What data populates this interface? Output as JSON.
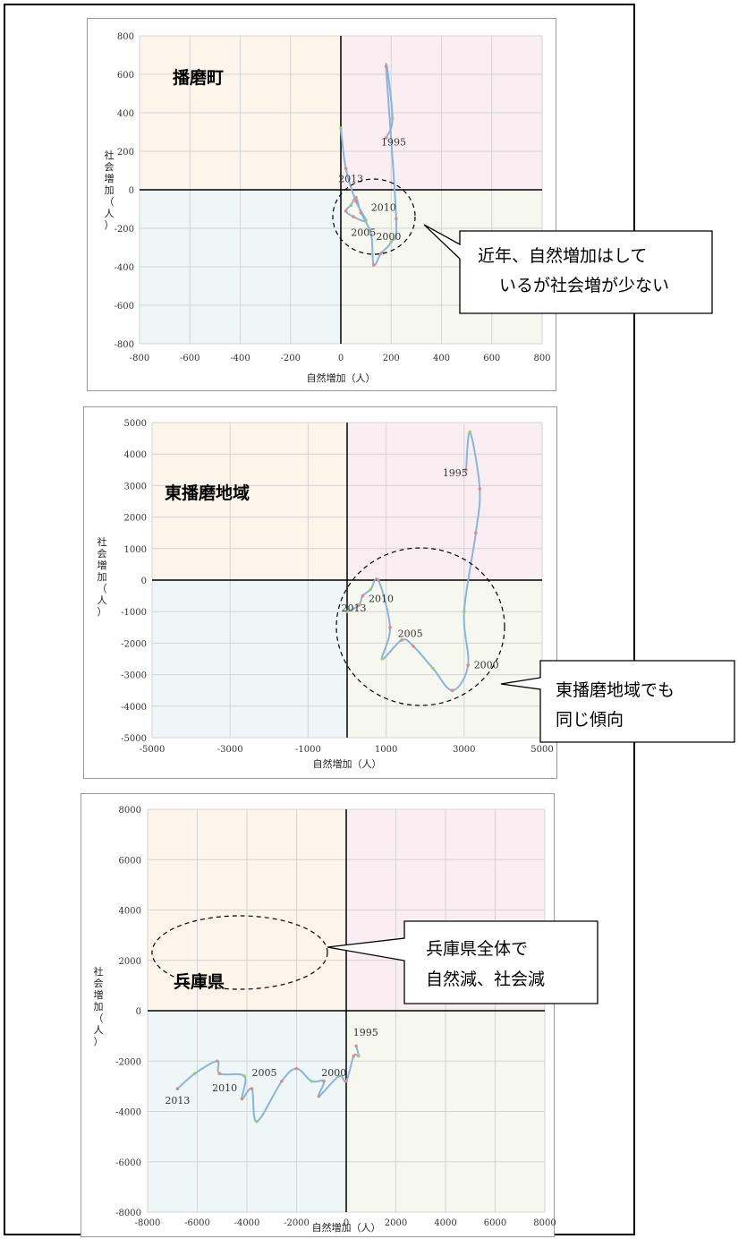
{
  "chart_data": [
    {
      "type": "line",
      "title": "播磨町",
      "xlabel": "自然増加（人）",
      "ylabel": "社会増加（人）",
      "xlim": [
        -800,
        800
      ],
      "ylim": [
        -800,
        800
      ],
      "xticks": [
        "-800",
        "-600",
        "-400",
        "-200",
        "0",
        "200",
        "400",
        "600",
        "800"
      ],
      "yticks": [
        "800",
        "600",
        "400",
        "200",
        "0",
        "-200",
        "-400",
        "-600",
        "-800"
      ],
      "quadrant_colors": {
        "top_left": "#fdf5ea",
        "top_right": "#fbeef2",
        "bottom_left": "#eef6f7",
        "bottom_right": "#f6f7ee"
      },
      "series": [
        {
          "values": [
            {
              "x": 180,
              "y": 270
            },
            {
              "x": 205,
              "y": 370
            },
            {
              "x": 180,
              "y": 640
            },
            {
              "x": 220,
              "y": -150
            },
            {
              "x": 200,
              "y": -270
            },
            {
              "x": 160,
              "y": -330
            },
            {
              "x": 130,
              "y": -390
            },
            {
              "x": 120,
              "y": -230
            },
            {
              "x": 80,
              "y": -120
            },
            {
              "x": 60,
              "y": -40
            },
            {
              "x": 40,
              "y": -80
            },
            {
              "x": 20,
              "y": -110
            },
            {
              "x": 50,
              "y": -140
            },
            {
              "x": 100,
              "y": -160
            },
            {
              "x": 60,
              "y": -60
            },
            {
              "x": 20,
              "y": 110
            },
            {
              "x": 0,
              "y": 320
            }
          ],
          "color": "#8ab4dc"
        }
      ],
      "annotations": [
        {
          "text": "1995",
          "x": 160,
          "y": 230
        },
        {
          "text": "2013",
          "x": -10,
          "y": 40
        },
        {
          "text": "2010",
          "x": 120,
          "y": -110
        },
        {
          "text": "2005",
          "x": 40,
          "y": -240
        },
        {
          "text": "2000",
          "x": 140,
          "y": -260
        }
      ],
      "callout": "近年、自然増加はして\nいるが社会増が少ない"
    },
    {
      "type": "line",
      "title": "東播磨地域",
      "xlabel": "自然増加（人）",
      "ylabel": "社会増加（人）",
      "xlim": [
        -5000,
        5000
      ],
      "ylim": [
        -5000,
        5000
      ],
      "xticks": [
        "-5000",
        "-3000",
        "-1000",
        "1000",
        "3000",
        "5000"
      ],
      "yticks": [
        "5000",
        "4000",
        "3000",
        "2000",
        "1000",
        "0",
        "-1000",
        "-2000",
        "-3000",
        "-4000",
        "-5000"
      ],
      "quadrant_colors": {
        "top_left": "#fdf5ea",
        "top_right": "#fbeef2",
        "bottom_left": "#eef6f7",
        "bottom_right": "#f6f7ee"
      },
      "series": [
        {
          "values": [
            {
              "x": 3050,
              "y": 3500
            },
            {
              "x": 3150,
              "y": 4700
            },
            {
              "x": 3400,
              "y": 2900
            },
            {
              "x": 3300,
              "y": 1500
            },
            {
              "x": 3000,
              "y": -1000
            },
            {
              "x": 3100,
              "y": -2700
            },
            {
              "x": 2700,
              "y": -3500
            },
            {
              "x": 2200,
              "y": -2800
            },
            {
              "x": 1700,
              "y": -2100
            },
            {
              "x": 1400,
              "y": -1900
            },
            {
              "x": 900,
              "y": -2500
            },
            {
              "x": 1100,
              "y": -1500
            },
            {
              "x": 800,
              "y": 0
            },
            {
              "x": 600,
              "y": -300
            },
            {
              "x": 400,
              "y": -500
            },
            {
              "x": 300,
              "y": -800
            },
            {
              "x": 0,
              "y": -1000
            }
          ],
          "color": "#8ab4dc"
        }
      ],
      "annotations": [
        {
          "text": "1995",
          "x": 2450,
          "y": 3300
        },
        {
          "text": "2010",
          "x": 550,
          "y": -700
        },
        {
          "text": "2013",
          "x": -150,
          "y": -1000
        },
        {
          "text": "2005",
          "x": 1300,
          "y": -1800
        },
        {
          "text": "2000",
          "x": 3250,
          "y": -2800
        }
      ],
      "callout": "東播磨地域でも\n同じ傾向"
    },
    {
      "type": "line",
      "title": "兵庫県",
      "xlabel": "自然増加（人）",
      "ylabel": "社会増加（人）",
      "xlim": [
        -8000,
        8000
      ],
      "ylim": [
        -8000,
        8000
      ],
      "xticks": [
        "-8000",
        "-6000",
        "-4000",
        "-2000",
        "0",
        "2000",
        "4000",
        "6000",
        "8000"
      ],
      "yticks": [
        "8000",
        "6000",
        "4000",
        "2000",
        "0",
        "-2000",
        "-4000",
        "-6000",
        "-8000"
      ],
      "quadrant_colors": {
        "top_left": "#fdf5ea",
        "top_right": "#fbeef2",
        "bottom_left": "#eef6f7",
        "bottom_right": "#f6f7ee"
      },
      "series": [
        {
          "values": [
            {
              "x": 400,
              "y": -1400
            },
            {
              "x": 500,
              "y": -1800
            },
            {
              "x": 300,
              "y": -1800
            },
            {
              "x": 0,
              "y": -2800
            },
            {
              "x": -300,
              "y": -2600
            },
            {
              "x": -1100,
              "y": -3400
            },
            {
              "x": -900,
              "y": -2800
            },
            {
              "x": -1400,
              "y": -2800
            },
            {
              "x": -2000,
              "y": -2300
            },
            {
              "x": -2600,
              "y": -2800
            },
            {
              "x": -3600,
              "y": -4400
            },
            {
              "x": -3800,
              "y": -3100
            },
            {
              "x": -4200,
              "y": -3500
            },
            {
              "x": -4100,
              "y": -2600
            },
            {
              "x": -5100,
              "y": -2500
            },
            {
              "x": -5200,
              "y": -2000
            },
            {
              "x": -6100,
              "y": -2500
            },
            {
              "x": -6800,
              "y": -3100
            }
          ],
          "color": "#8ab4dc"
        }
      ],
      "annotations": [
        {
          "text": "1995",
          "x": 280,
          "y": -1000
        },
        {
          "text": "2000",
          "x": -1000,
          "y": -2600
        },
        {
          "text": "2005",
          "x": -3800,
          "y": -2600
        },
        {
          "text": "2010",
          "x": -5400,
          "y": -3200
        },
        {
          "text": "2013",
          "x": -7300,
          "y": -3700
        }
      ],
      "callout": "兵庫県全体で\n自然減、社会減"
    }
  ]
}
